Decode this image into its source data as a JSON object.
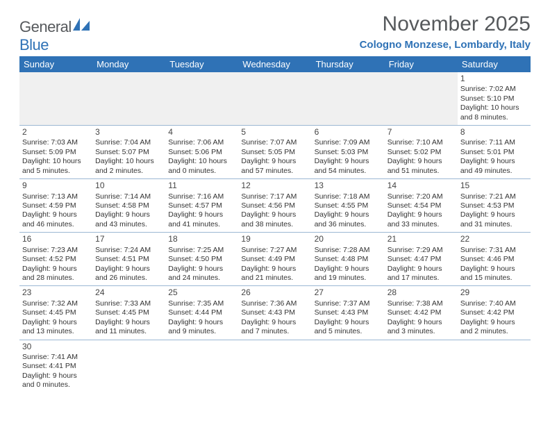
{
  "brand": {
    "text1": "General",
    "text2": "Blue"
  },
  "title": "November 2025",
  "location": "Cologno Monzese, Lombardy, Italy",
  "colors": {
    "header_bg": "#2f72b6",
    "header_text": "#ffffff",
    "location_text": "#2f72b6",
    "title_text": "#56595c",
    "row_border": "#9bb7d3",
    "empty_bg": "#f0f0f0",
    "body_text": "#333333"
  },
  "day_headers": [
    "Sunday",
    "Monday",
    "Tuesday",
    "Wednesday",
    "Thursday",
    "Friday",
    "Saturday"
  ],
  "weeks": [
    [
      null,
      null,
      null,
      null,
      null,
      null,
      {
        "n": "1",
        "l1": "Sunrise: 7:02 AM",
        "l2": "Sunset: 5:10 PM",
        "l3": "Daylight: 10 hours",
        "l4": "and 8 minutes."
      }
    ],
    [
      {
        "n": "2",
        "l1": "Sunrise: 7:03 AM",
        "l2": "Sunset: 5:09 PM",
        "l3": "Daylight: 10 hours",
        "l4": "and 5 minutes."
      },
      {
        "n": "3",
        "l1": "Sunrise: 7:04 AM",
        "l2": "Sunset: 5:07 PM",
        "l3": "Daylight: 10 hours",
        "l4": "and 2 minutes."
      },
      {
        "n": "4",
        "l1": "Sunrise: 7:06 AM",
        "l2": "Sunset: 5:06 PM",
        "l3": "Daylight: 10 hours",
        "l4": "and 0 minutes."
      },
      {
        "n": "5",
        "l1": "Sunrise: 7:07 AM",
        "l2": "Sunset: 5:05 PM",
        "l3": "Daylight: 9 hours",
        "l4": "and 57 minutes."
      },
      {
        "n": "6",
        "l1": "Sunrise: 7:09 AM",
        "l2": "Sunset: 5:03 PM",
        "l3": "Daylight: 9 hours",
        "l4": "and 54 minutes."
      },
      {
        "n": "7",
        "l1": "Sunrise: 7:10 AM",
        "l2": "Sunset: 5:02 PM",
        "l3": "Daylight: 9 hours",
        "l4": "and 51 minutes."
      },
      {
        "n": "8",
        "l1": "Sunrise: 7:11 AM",
        "l2": "Sunset: 5:01 PM",
        "l3": "Daylight: 9 hours",
        "l4": "and 49 minutes."
      }
    ],
    [
      {
        "n": "9",
        "l1": "Sunrise: 7:13 AM",
        "l2": "Sunset: 4:59 PM",
        "l3": "Daylight: 9 hours",
        "l4": "and 46 minutes."
      },
      {
        "n": "10",
        "l1": "Sunrise: 7:14 AM",
        "l2": "Sunset: 4:58 PM",
        "l3": "Daylight: 9 hours",
        "l4": "and 43 minutes."
      },
      {
        "n": "11",
        "l1": "Sunrise: 7:16 AM",
        "l2": "Sunset: 4:57 PM",
        "l3": "Daylight: 9 hours",
        "l4": "and 41 minutes."
      },
      {
        "n": "12",
        "l1": "Sunrise: 7:17 AM",
        "l2": "Sunset: 4:56 PM",
        "l3": "Daylight: 9 hours",
        "l4": "and 38 minutes."
      },
      {
        "n": "13",
        "l1": "Sunrise: 7:18 AM",
        "l2": "Sunset: 4:55 PM",
        "l3": "Daylight: 9 hours",
        "l4": "and 36 minutes."
      },
      {
        "n": "14",
        "l1": "Sunrise: 7:20 AM",
        "l2": "Sunset: 4:54 PM",
        "l3": "Daylight: 9 hours",
        "l4": "and 33 minutes."
      },
      {
        "n": "15",
        "l1": "Sunrise: 7:21 AM",
        "l2": "Sunset: 4:53 PM",
        "l3": "Daylight: 9 hours",
        "l4": "and 31 minutes."
      }
    ],
    [
      {
        "n": "16",
        "l1": "Sunrise: 7:23 AM",
        "l2": "Sunset: 4:52 PM",
        "l3": "Daylight: 9 hours",
        "l4": "and 28 minutes."
      },
      {
        "n": "17",
        "l1": "Sunrise: 7:24 AM",
        "l2": "Sunset: 4:51 PM",
        "l3": "Daylight: 9 hours",
        "l4": "and 26 minutes."
      },
      {
        "n": "18",
        "l1": "Sunrise: 7:25 AM",
        "l2": "Sunset: 4:50 PM",
        "l3": "Daylight: 9 hours",
        "l4": "and 24 minutes."
      },
      {
        "n": "19",
        "l1": "Sunrise: 7:27 AM",
        "l2": "Sunset: 4:49 PM",
        "l3": "Daylight: 9 hours",
        "l4": "and 21 minutes."
      },
      {
        "n": "20",
        "l1": "Sunrise: 7:28 AM",
        "l2": "Sunset: 4:48 PM",
        "l3": "Daylight: 9 hours",
        "l4": "and 19 minutes."
      },
      {
        "n": "21",
        "l1": "Sunrise: 7:29 AM",
        "l2": "Sunset: 4:47 PM",
        "l3": "Daylight: 9 hours",
        "l4": "and 17 minutes."
      },
      {
        "n": "22",
        "l1": "Sunrise: 7:31 AM",
        "l2": "Sunset: 4:46 PM",
        "l3": "Daylight: 9 hours",
        "l4": "and 15 minutes."
      }
    ],
    [
      {
        "n": "23",
        "l1": "Sunrise: 7:32 AM",
        "l2": "Sunset: 4:45 PM",
        "l3": "Daylight: 9 hours",
        "l4": "and 13 minutes."
      },
      {
        "n": "24",
        "l1": "Sunrise: 7:33 AM",
        "l2": "Sunset: 4:45 PM",
        "l3": "Daylight: 9 hours",
        "l4": "and 11 minutes."
      },
      {
        "n": "25",
        "l1": "Sunrise: 7:35 AM",
        "l2": "Sunset: 4:44 PM",
        "l3": "Daylight: 9 hours",
        "l4": "and 9 minutes."
      },
      {
        "n": "26",
        "l1": "Sunrise: 7:36 AM",
        "l2": "Sunset: 4:43 PM",
        "l3": "Daylight: 9 hours",
        "l4": "and 7 minutes."
      },
      {
        "n": "27",
        "l1": "Sunrise: 7:37 AM",
        "l2": "Sunset: 4:43 PM",
        "l3": "Daylight: 9 hours",
        "l4": "and 5 minutes."
      },
      {
        "n": "28",
        "l1": "Sunrise: 7:38 AM",
        "l2": "Sunset: 4:42 PM",
        "l3": "Daylight: 9 hours",
        "l4": "and 3 minutes."
      },
      {
        "n": "29",
        "l1": "Sunrise: 7:40 AM",
        "l2": "Sunset: 4:42 PM",
        "l3": "Daylight: 9 hours",
        "l4": "and 2 minutes."
      }
    ],
    [
      {
        "n": "30",
        "l1": "Sunrise: 7:41 AM",
        "l2": "Sunset: 4:41 PM",
        "l3": "Daylight: 9 hours",
        "l4": "and 0 minutes."
      },
      null,
      null,
      null,
      null,
      null,
      null
    ]
  ]
}
